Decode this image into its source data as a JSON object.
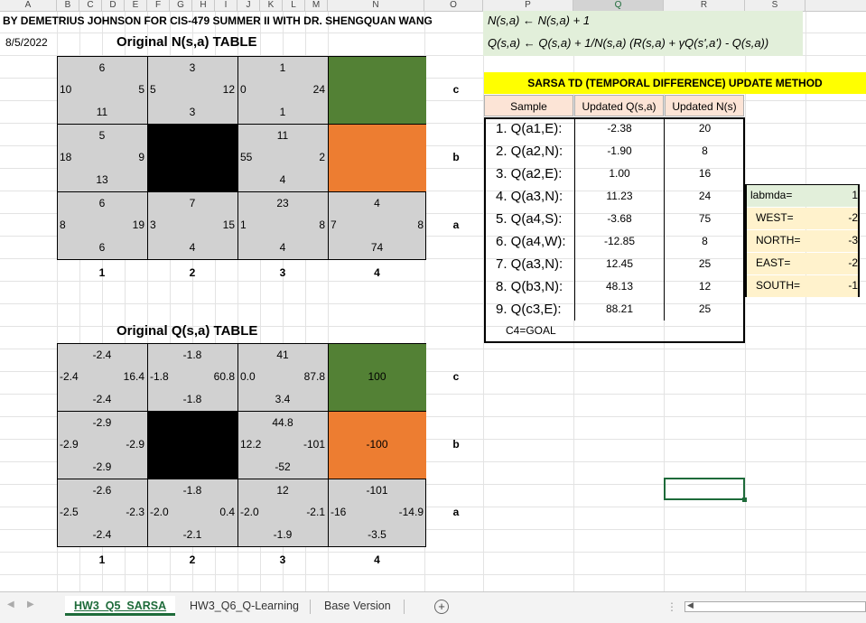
{
  "columns": [
    "A",
    "B",
    "C",
    "D",
    "E",
    "F",
    "G",
    "H",
    "I",
    "J",
    "K",
    "L",
    "M",
    "N",
    "O",
    "P",
    "Q",
    "R",
    "S"
  ],
  "header_title": "BY DEMETRIUS JOHNSON FOR CIS-479 SUMMER II WITH DR. SHENGQUAN WANG",
  "date": "8/5/2022",
  "formula1": "N(s,a) ← N(s,a) + 1",
  "formula2": "Q(s,a) ← Q(s,a) + 1/N(s,a) (R(s,a) + γQ(s',a') - Q(s,a))",
  "n_table_title": "Original N(s,a) TABLE",
  "q_table_title": "Original Q(s,a) TABLE",
  "row_labels": [
    "c",
    "b",
    "a"
  ],
  "col_labels": [
    "1",
    "2",
    "3",
    "4"
  ],
  "n_grid": {
    "c1": {
      "top": "6",
      "left": "10",
      "right": "5",
      "bottom": "11"
    },
    "c2": {
      "top": "3",
      "left": "5",
      "right": "12",
      "bottom": "3"
    },
    "c3": {
      "top": "1",
      "left": "0",
      "right": "24",
      "bottom": "1"
    },
    "b1": {
      "top": "5",
      "left": "18",
      "right": "9",
      "bottom": "13"
    },
    "b3": {
      "top": "11",
      "left": "55",
      "right": "2",
      "bottom": "4"
    },
    "a1": {
      "top": "6",
      "left": "8",
      "right": "19",
      "bottom": "6"
    },
    "a2": {
      "top": "7",
      "left": "3",
      "right": "15",
      "bottom": "4"
    },
    "a3": {
      "top": "23",
      "left": "1",
      "right": "8",
      "bottom": "4"
    },
    "a4": {
      "top": "4",
      "left": "7",
      "right": "8",
      "bottom": "74"
    }
  },
  "q_grid": {
    "c1": {
      "top": "-2.4",
      "left": "-2.4",
      "right": "16.4",
      "bottom": "-2.4"
    },
    "c2": {
      "top": "-1.8",
      "left": "-1.8",
      "right": "60.8",
      "bottom": "-1.8"
    },
    "c3": {
      "top": "41",
      "left": "0.0",
      "right": "87.8",
      "bottom": "3.4"
    },
    "c4": {
      "center": "100"
    },
    "b1": {
      "top": "-2.9",
      "left": "-2.9",
      "right": "-2.9",
      "bottom": "-2.9"
    },
    "b3": {
      "top": "44.8",
      "left": "12.2",
      "right": "-101",
      "bottom": "-52"
    },
    "b4": {
      "center": "-100"
    },
    "a1": {
      "top": "-2.6",
      "left": "-2.5",
      "right": "-2.3",
      "bottom": "-2.4"
    },
    "a2": {
      "top": "-1.8",
      "left": "-2.0",
      "right": "0.4",
      "bottom": "-2.1"
    },
    "a3": {
      "top": "12",
      "left": "-2.0",
      "right": "-2.1",
      "bottom": "-1.9"
    },
    "a4": {
      "top": "-101",
      "left": "-16",
      "right": "-14.9",
      "bottom": "-3.5"
    }
  },
  "sarsa": {
    "title": "SARSA TD (TEMPORAL DIFFERENCE) UPDATE METHOD",
    "headers": [
      "Sample",
      "Updated Q(s,a)",
      "Updated N(s)"
    ],
    "rows": [
      [
        "1. Q(a1,E):",
        "-2.38",
        "20"
      ],
      [
        "2. Q(a2,N):",
        "-1.90",
        "8"
      ],
      [
        "3. Q(a2,E):",
        "1.00",
        "16"
      ],
      [
        "4. Q(a3,N):",
        "11.23",
        "24"
      ],
      [
        "5. Q(a4,S):",
        "-3.68",
        "75"
      ],
      [
        "6. Q(a4,W):",
        "-12.85",
        "8"
      ],
      [
        "7. Q(a3,N):",
        "12.45",
        "25"
      ],
      [
        "8. Q(b3,N):",
        "48.13",
        "12"
      ],
      [
        "9. Q(c3,E):",
        "88.21",
        "25"
      ]
    ],
    "goal": "C4=GOAL"
  },
  "params": [
    {
      "label": "labmda=",
      "value": "1"
    },
    {
      "label": "WEST=",
      "value": "-2"
    },
    {
      "label": "NORTH=",
      "value": "-3"
    },
    {
      "label": "EAST=",
      "value": "-2"
    },
    {
      "label": "SOUTH=",
      "value": "-1"
    }
  ],
  "tabs": [
    "HW3_Q5_SARSA",
    "HW3_Q6_Q-Learning",
    "Base Version"
  ],
  "colors": {
    "green": "#538135",
    "orange": "#ed7d31",
    "yellow": "#ffff00",
    "formula_bg": "#e2efda",
    "header_bg": "#fce4d6",
    "param_bg": "#fff2cc"
  }
}
